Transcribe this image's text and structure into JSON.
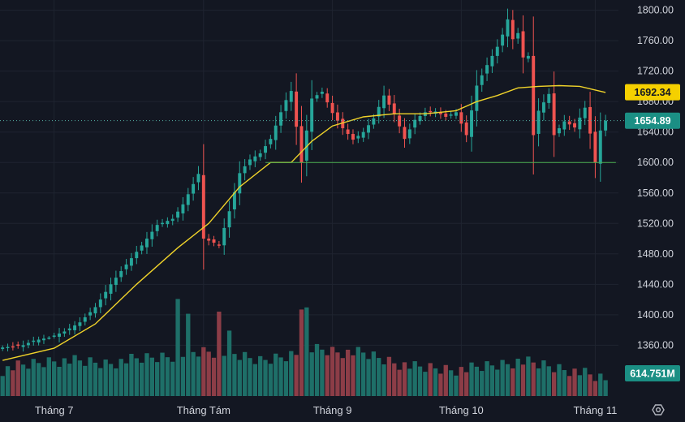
{
  "chart_data": {
    "type": "candlestick",
    "title": "",
    "y_axis": {
      "position": "right",
      "range": [
        1322,
        1806
      ],
      "ticks": [
        "1800.00",
        "1760.00",
        "1720.00",
        "1680.00",
        "1640.00",
        "1600.00",
        "1560.00",
        "1520.00",
        "1480.00",
        "1440.00",
        "1400.00",
        "1360.00"
      ],
      "tick_values": [
        1800,
        1760,
        1720,
        1680,
        1640,
        1600,
        1560,
        1520,
        1480,
        1440,
        1400,
        1360
      ]
    },
    "x_axis": {
      "labels": [
        "Tháng 7",
        "Tháng Tám",
        "Tháng 9",
        "Tháng 10",
        "Tháng 11"
      ],
      "label_bar_index": [
        10,
        39,
        64,
        89,
        115
      ]
    },
    "bar_count": 120,
    "series": [
      {
        "name": "Price",
        "kind": "candlestick",
        "anchors_close": [
          [
            0,
            1357
          ],
          [
            4,
            1360
          ],
          [
            6,
            1366
          ],
          [
            9,
            1370
          ],
          [
            12,
            1378
          ],
          [
            15,
            1390
          ],
          [
            18,
            1410
          ],
          [
            21,
            1440
          ],
          [
            24,
            1466
          ],
          [
            27,
            1491
          ],
          [
            30,
            1518
          ],
          [
            33,
            1526
          ],
          [
            35,
            1545
          ],
          [
            38,
            1585
          ],
          [
            39,
            1500
          ],
          [
            42,
            1492
          ],
          [
            44,
            1536
          ],
          [
            46,
            1586
          ],
          [
            48,
            1604
          ],
          [
            50,
            1612
          ],
          [
            52,
            1631
          ],
          [
            54,
            1666
          ],
          [
            55,
            1682
          ],
          [
            56,
            1694
          ],
          [
            58,
            1600
          ],
          [
            60,
            1684
          ],
          [
            62,
            1693
          ],
          [
            64,
            1665
          ],
          [
            66,
            1645
          ],
          [
            68,
            1630
          ],
          [
            70,
            1640
          ],
          [
            72,
            1658
          ],
          [
            74,
            1688
          ],
          [
            76,
            1664
          ],
          [
            78,
            1631
          ],
          [
            80,
            1656
          ],
          [
            82,
            1666
          ],
          [
            84,
            1667
          ],
          [
            86,
            1660
          ],
          [
            88,
            1666
          ],
          [
            90,
            1636
          ],
          [
            92,
            1701
          ],
          [
            94,
            1728
          ],
          [
            96,
            1752
          ],
          [
            97,
            1768
          ],
          [
            98,
            1788
          ],
          [
            99,
            1762
          ],
          [
            100,
            1770
          ],
          [
            101,
            1738
          ],
          [
            102,
            1740
          ],
          [
            103,
            1636
          ],
          [
            104,
            1668
          ],
          [
            106,
            1690
          ],
          [
            107,
            1636
          ],
          [
            109,
            1654
          ],
          [
            111,
            1646
          ],
          [
            113,
            1672
          ],
          [
            114,
            1638
          ],
          [
            115,
            1600
          ],
          [
            116,
            1642
          ],
          [
            117,
            1655
          ]
        ]
      },
      {
        "name": "Moving average",
        "kind": "line",
        "color": "#f0d32a",
        "anchors": [
          [
            0,
            1340
          ],
          [
            10,
            1356
          ],
          [
            18,
            1388
          ],
          [
            26,
            1440
          ],
          [
            34,
            1488
          ],
          [
            40,
            1520
          ],
          [
            46,
            1568
          ],
          [
            52,
            1600
          ],
          [
            56,
            1600
          ],
          [
            60,
            1628
          ],
          [
            64,
            1648
          ],
          [
            70,
            1660
          ],
          [
            76,
            1664
          ],
          [
            82,
            1664
          ],
          [
            88,
            1668
          ],
          [
            92,
            1680
          ],
          [
            96,
            1688
          ],
          [
            100,
            1698
          ],
          [
            104,
            1700
          ],
          [
            108,
            1701
          ],
          [
            112,
            1700
          ],
          [
            117,
            1692
          ]
        ]
      },
      {
        "name": "Support line",
        "kind": "horizontal",
        "value": 1600,
        "from_bar": 51,
        "to_bar": 119,
        "color": "#4caf50"
      },
      {
        "name": "Volume",
        "kind": "volume",
        "anchors_height": [
          [
            0,
            0.25
          ],
          [
            10,
            0.34
          ],
          [
            20,
            0.31
          ],
          [
            30,
            0.37
          ],
          [
            40,
            0.42
          ],
          [
            50,
            0.33
          ],
          [
            60,
            0.45
          ],
          [
            70,
            0.4
          ],
          [
            80,
            0.27
          ],
          [
            90,
            0.25
          ],
          [
            100,
            0.33
          ],
          [
            110,
            0.25
          ],
          [
            117,
            0.15
          ]
        ],
        "spikes": [
          [
            34,
            0.92
          ],
          [
            36,
            0.78
          ],
          [
            42,
            0.8
          ],
          [
            44,
            0.62
          ],
          [
            58,
            0.82
          ],
          [
            59,
            0.84
          ]
        ]
      }
    ],
    "markers": {
      "ma_value": "1692.34",
      "price_value": "1654.89",
      "volume_value": "614.751M"
    },
    "colors": {
      "background": "#131722",
      "up": "#26a69a",
      "down": "#ef5350",
      "up_volume": "#1e6f68",
      "down_volume": "#8c3d47",
      "grid": "#1f2430",
      "ma_badge": "#f5d000",
      "price_badge": "#1b8f84",
      "volume_badge": "#1b8f84",
      "price_line": "#56b3a6"
    },
    "grid": true,
    "legend": "none"
  },
  "icons": {
    "settings": "settings-hex-icon"
  }
}
